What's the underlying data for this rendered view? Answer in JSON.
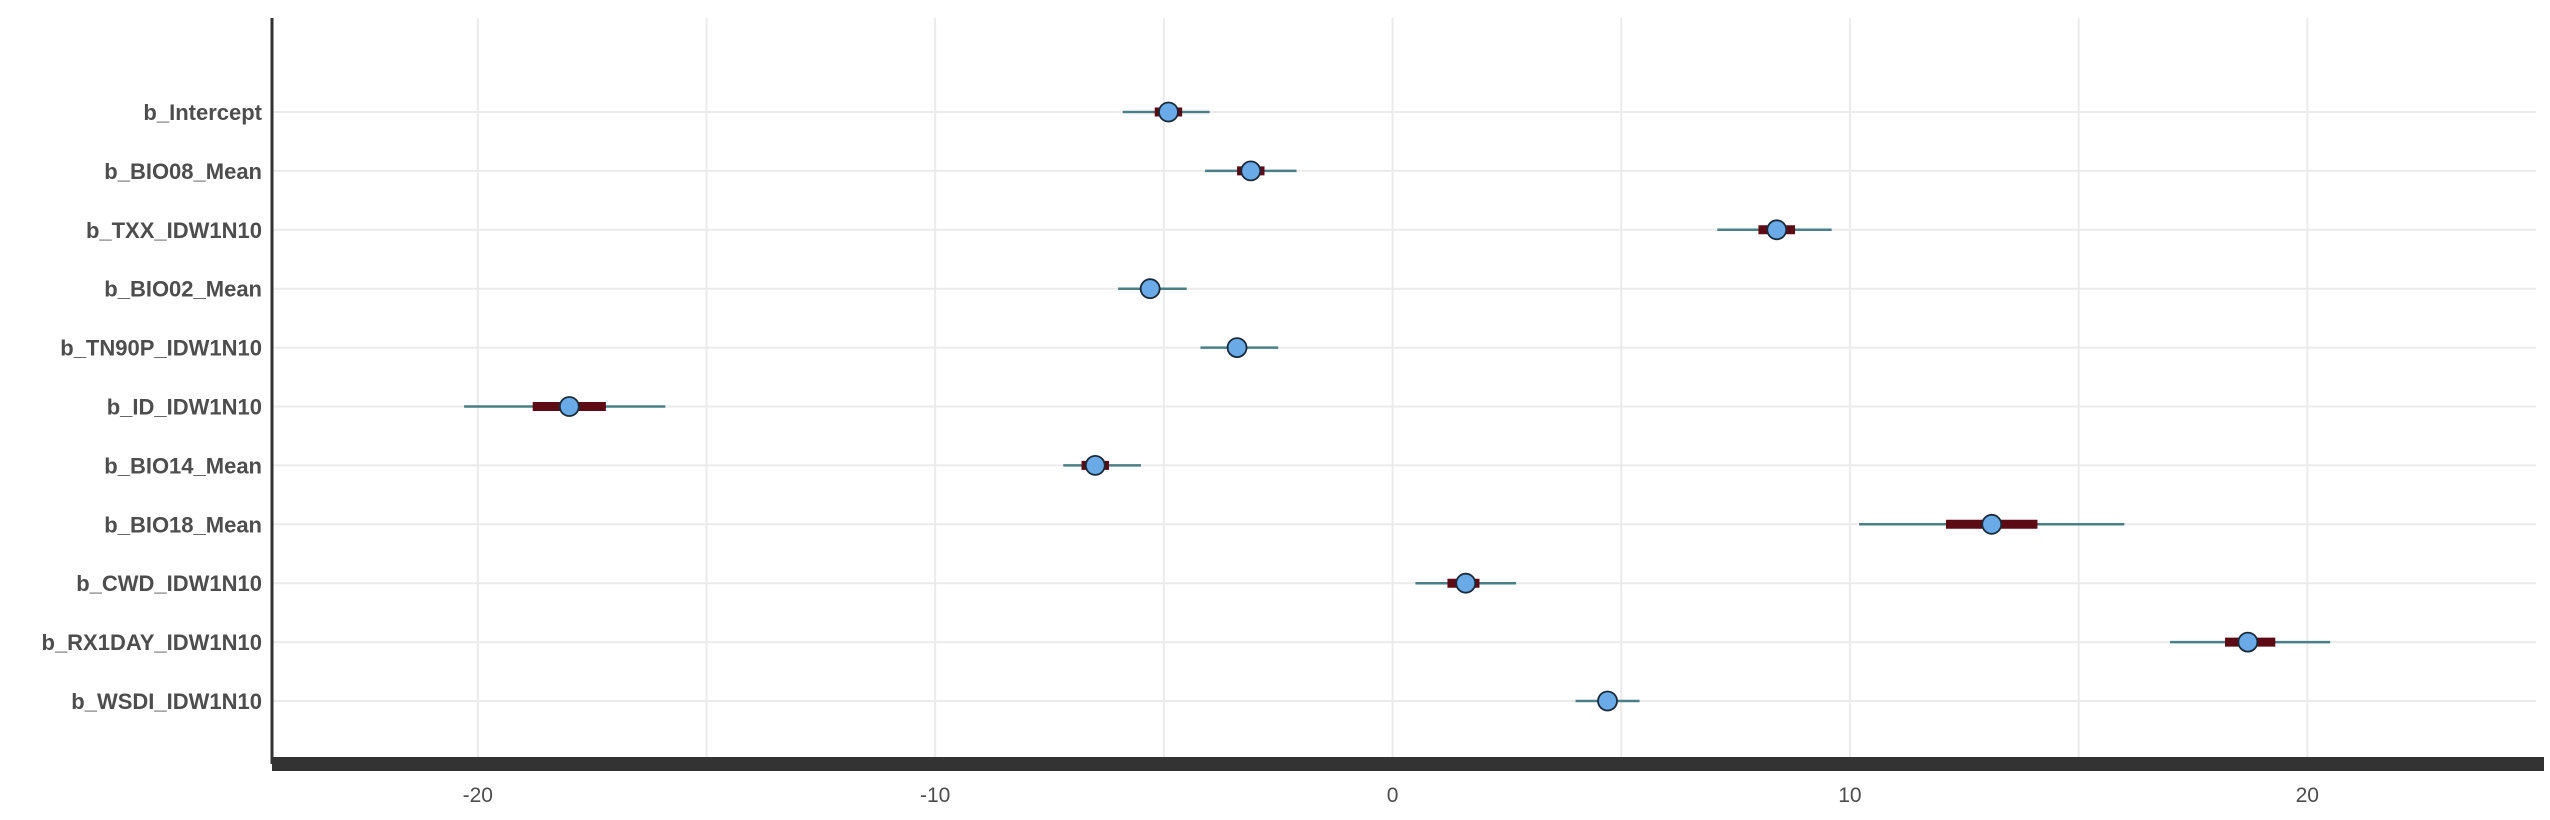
{
  "chart_data": {
    "type": "interval",
    "xlim": [
      -24.5,
      25
    ],
    "x_ticks": [
      -20,
      -10,
      0,
      10,
      20
    ],
    "x_tick_labels": [
      "-20",
      "-10",
      "0",
      "10",
      "20"
    ],
    "grid": true,
    "colors": {
      "outer_interval": "#4a7f86",
      "inner_interval": "#5c0a14",
      "point_fill": "#6aaae6",
      "point_stroke": "#1a2a3a",
      "axis": "#333333",
      "gridline": "#ebebeb"
    },
    "parameters": [
      {
        "label": "b_Intercept",
        "median": -4.9,
        "inner": [
          -5.2,
          -4.6
        ],
        "outer": [
          -5.9,
          -4.0
        ]
      },
      {
        "label": "b_BIO08_Mean",
        "median": -3.1,
        "inner": [
          -3.4,
          -2.8
        ],
        "outer": [
          -4.1,
          -2.1
        ]
      },
      {
        "label": "b_TXX_IDW1N10",
        "median": 8.4,
        "inner": [
          8.0,
          8.8
        ],
        "outer": [
          7.1,
          9.6
        ]
      },
      {
        "label": "b_BIO02_Mean",
        "median": -5.3,
        "inner": [
          -5.5,
          -5.1
        ],
        "outer": [
          -6.0,
          -4.5
        ]
      },
      {
        "label": "b_TN90P_IDW1N10",
        "median": -3.4,
        "inner": [
          -3.6,
          -3.2
        ],
        "outer": [
          -4.2,
          -2.5
        ]
      },
      {
        "label": "b_ID_IDW1N10",
        "median": -18.0,
        "inner": [
          -18.8,
          -17.2
        ],
        "outer": [
          -20.3,
          -15.9
        ]
      },
      {
        "label": "b_BIO14_Mean",
        "median": -6.5,
        "inner": [
          -6.8,
          -6.2
        ],
        "outer": [
          -7.2,
          -5.5
        ]
      },
      {
        "label": "b_BIO18_Mean",
        "median": 13.1,
        "inner": [
          12.1,
          14.1
        ],
        "outer": [
          10.2,
          16.0
        ]
      },
      {
        "label": "b_CWD_IDW1N10",
        "median": 1.6,
        "inner": [
          1.2,
          1.9
        ],
        "outer": [
          0.5,
          2.7
        ]
      },
      {
        "label": "b_RX1DAY_IDW1N10",
        "median": 18.7,
        "inner": [
          18.2,
          19.3
        ],
        "outer": [
          17.0,
          20.5
        ]
      },
      {
        "label": "b_WSDI_IDW1N10",
        "median": 4.7,
        "inner": [
          4.5,
          4.9
        ],
        "outer": [
          4.0,
          5.4
        ]
      }
    ]
  }
}
